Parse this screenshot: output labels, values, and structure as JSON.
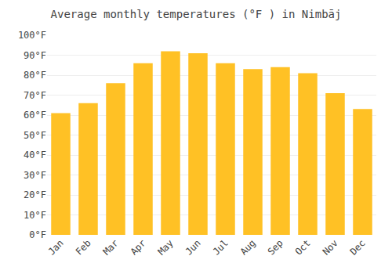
{
  "chart_data": {
    "type": "bar",
    "title": "Average monthly temperatures (°F ) in Nimbāj",
    "categories": [
      "Jan",
      "Feb",
      "Mar",
      "Apr",
      "May",
      "Jun",
      "Jul",
      "Aug",
      "Sep",
      "Oct",
      "Nov",
      "Dec"
    ],
    "values": [
      61,
      66,
      76,
      86,
      92,
      91,
      86,
      83,
      84,
      81,
      71,
      63
    ],
    "color": "#FFC125",
    "ylim": [
      0,
      100
    ],
    "yticks": [
      {
        "value": 0,
        "label": "0°F"
      },
      {
        "value": 10,
        "label": "10°F"
      },
      {
        "value": 20,
        "label": "20°F"
      },
      {
        "value": 30,
        "label": "30°F"
      },
      {
        "value": 40,
        "label": "40°F"
      },
      {
        "value": 50,
        "label": "50°F"
      },
      {
        "value": 60,
        "label": "60°F"
      },
      {
        "value": 70,
        "label": "70°F"
      },
      {
        "value": 80,
        "label": "80°F"
      },
      {
        "value": 90,
        "label": "90°F"
      },
      {
        "value": 100,
        "label": "100°F"
      }
    ],
    "grid": true
  }
}
